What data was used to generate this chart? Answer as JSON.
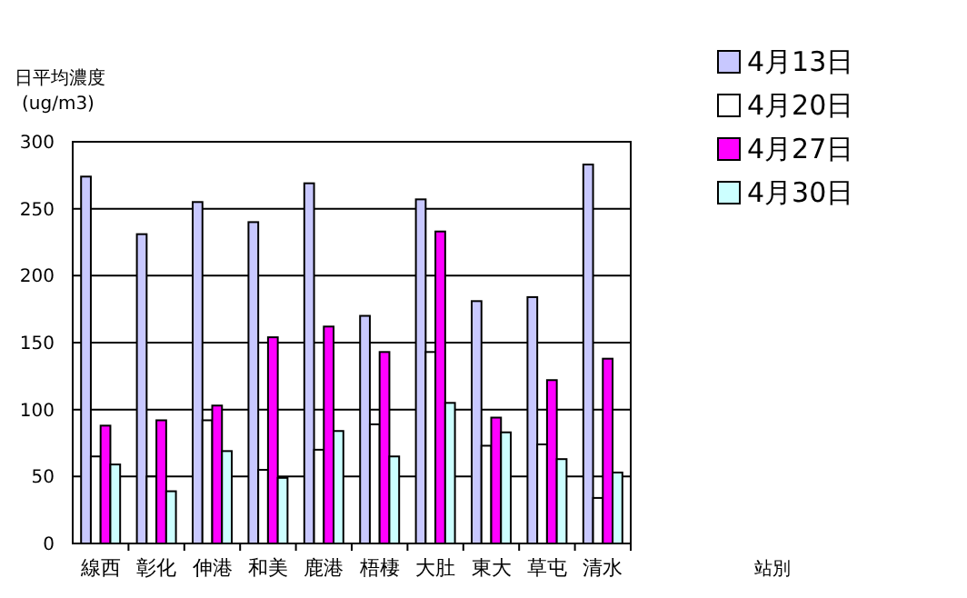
{
  "chart_data": {
    "type": "bar",
    "ylabel": "日平均濃度\n(ug/m3)",
    "annotations": [
      "站別"
    ],
    "categories": [
      "線西",
      "彰化",
      "伸港",
      "和美",
      "鹿港",
      "梧棲",
      "大肚",
      "東大",
      "草屯",
      "清水"
    ],
    "series": [
      {
        "name": "4月13日",
        "color": "#c8c8ff",
        "values": [
          274,
          231,
          255,
          240,
          269,
          170,
          257,
          181,
          184,
          283
        ]
      },
      {
        "name": "4月20日",
        "color": "#ffffff",
        "values": [
          65,
          50,
          92,
          55,
          70,
          89,
          143,
          73,
          74,
          34
        ]
      },
      {
        "name": "4月27日",
        "color": "#ff00ff",
        "values": [
          88,
          92,
          103,
          154,
          162,
          143,
          233,
          94,
          122,
          138
        ]
      },
      {
        "name": "4月30日",
        "color": "#ccffff",
        "values": [
          59,
          39,
          69,
          49,
          84,
          65,
          105,
          83,
          63,
          53
        ]
      }
    ],
    "ylim": [
      0,
      300
    ],
    "yticks": [
      0,
      50,
      100,
      150,
      200,
      250,
      300
    ],
    "grid": "y",
    "legend": "top right"
  }
}
